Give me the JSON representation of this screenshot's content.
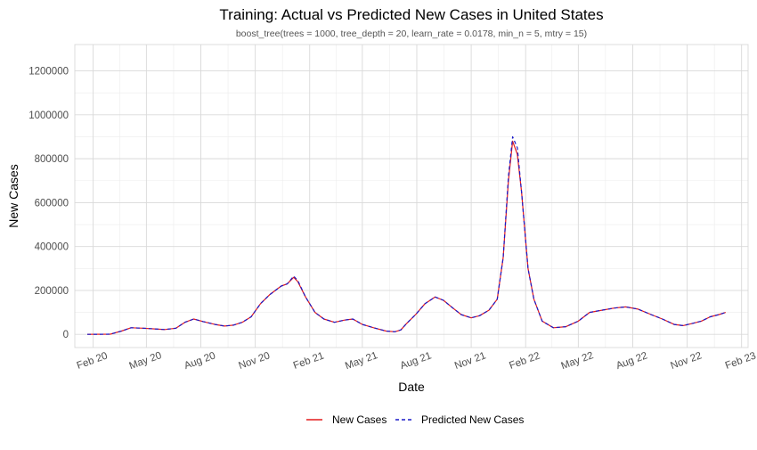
{
  "chart_data": {
    "type": "line",
    "title": "Training: Actual vs Predicted New Cases in United States",
    "subtitle": "boost_tree(trees = 1000, tree_depth = 20, learn_rate = 0.0178, min_n = 5, mtry = 15)",
    "xlabel": "Date",
    "ylabel": "New Cases",
    "x_range": [
      "2020-01-01",
      "2023-02-12"
    ],
    "ylim": [
      -60000,
      1320000
    ],
    "x_ticks": [
      {
        "label": "Feb 20",
        "date": "2020-02-01"
      },
      {
        "label": "May 20",
        "date": "2020-05-01"
      },
      {
        "label": "Aug 20",
        "date": "2020-08-01"
      },
      {
        "label": "Nov 20",
        "date": "2020-11-01"
      },
      {
        "label": "Feb 21",
        "date": "2021-02-01"
      },
      {
        "label": "May 21",
        "date": "2021-05-01"
      },
      {
        "label": "Aug 21",
        "date": "2021-08-01"
      },
      {
        "label": "Nov 21",
        "date": "2021-11-01"
      },
      {
        "label": "Feb 22",
        "date": "2022-02-01"
      },
      {
        "label": "May 22",
        "date": "2022-05-01"
      },
      {
        "label": "Aug 22",
        "date": "2022-08-01"
      },
      {
        "label": "Nov 22",
        "date": "2022-11-01"
      },
      {
        "label": "Feb 23",
        "date": "2023-02-01"
      }
    ],
    "y_ticks": [
      {
        "label": "0",
        "value": 0
      },
      {
        "label": "200000",
        "value": 200000
      },
      {
        "label": "400000",
        "value": 400000
      },
      {
        "label": "600000",
        "value": 600000
      },
      {
        "label": "800000",
        "value": 800000
      },
      {
        "label": "1000000",
        "value": 1000000
      },
      {
        "label": "1200000",
        "value": 1200000
      }
    ],
    "grid": true,
    "legend_position": "bottom",
    "series": [
      {
        "name": "New Cases",
        "color": "#e41a1c",
        "dash": "solid",
        "x": [
          "2020-01-22",
          "2020-03-01",
          "2020-03-20",
          "2020-04-05",
          "2020-04-25",
          "2020-05-15",
          "2020-06-01",
          "2020-06-20",
          "2020-07-05",
          "2020-07-20",
          "2020-08-05",
          "2020-08-25",
          "2020-09-10",
          "2020-09-25",
          "2020-10-10",
          "2020-10-25",
          "2020-11-10",
          "2020-11-25",
          "2020-12-05",
          "2020-12-15",
          "2020-12-25",
          "2021-01-05",
          "2021-01-12",
          "2021-01-25",
          "2021-02-10",
          "2021-02-25",
          "2021-03-15",
          "2021-04-01",
          "2021-04-15",
          "2021-05-01",
          "2021-05-20",
          "2021-06-10",
          "2021-06-25",
          "2021-07-05",
          "2021-07-15",
          "2021-07-30",
          "2021-08-15",
          "2021-09-01",
          "2021-09-15",
          "2021-10-01",
          "2021-10-15",
          "2021-11-01",
          "2021-11-15",
          "2021-12-01",
          "2021-12-15",
          "2021-12-25",
          "2022-01-03",
          "2022-01-10",
          "2022-01-18",
          "2022-01-25",
          "2022-02-05",
          "2022-02-15",
          "2022-03-01",
          "2022-03-20",
          "2022-04-10",
          "2022-05-01",
          "2022-05-20",
          "2022-06-10",
          "2022-07-01",
          "2022-07-20",
          "2022-08-10",
          "2022-09-01",
          "2022-09-20",
          "2022-10-10",
          "2022-10-25",
          "2022-11-10",
          "2022-11-25",
          "2022-12-10",
          "2022-12-25",
          "2023-01-05"
        ],
        "values": [
          0,
          1000,
          15000,
          30000,
          28000,
          25000,
          22000,
          28000,
          55000,
          70000,
          58000,
          45000,
          38000,
          42000,
          55000,
          80000,
          140000,
          180000,
          200000,
          220000,
          230000,
          260000,
          240000,
          170000,
          100000,
          70000,
          55000,
          65000,
          70000,
          45000,
          30000,
          15000,
          12000,
          20000,
          50000,
          90000,
          140000,
          170000,
          155000,
          120000,
          90000,
          75000,
          85000,
          110000,
          160000,
          350000,
          700000,
          880000,
          820000,
          650000,
          300000,
          160000,
          60000,
          30000,
          35000,
          60000,
          100000,
          110000,
          120000,
          125000,
          115000,
          90000,
          70000,
          45000,
          40000,
          50000,
          60000,
          80000,
          90000,
          100000
        ]
      },
      {
        "name": "Predicted New Cases",
        "color": "#1a1ac8",
        "dash": "dashed",
        "x": [
          "2020-01-22",
          "2020-03-01",
          "2020-03-20",
          "2020-04-05",
          "2020-04-25",
          "2020-05-15",
          "2020-06-01",
          "2020-06-20",
          "2020-07-05",
          "2020-07-20",
          "2020-08-05",
          "2020-08-25",
          "2020-09-10",
          "2020-09-25",
          "2020-10-10",
          "2020-10-25",
          "2020-11-10",
          "2020-11-25",
          "2020-12-05",
          "2020-12-15",
          "2020-12-25",
          "2021-01-05",
          "2021-01-12",
          "2021-01-25",
          "2021-02-10",
          "2021-02-25",
          "2021-03-15",
          "2021-04-01",
          "2021-04-15",
          "2021-05-01",
          "2021-05-20",
          "2021-06-10",
          "2021-06-25",
          "2021-07-05",
          "2021-07-15",
          "2021-07-30",
          "2021-08-15",
          "2021-09-01",
          "2021-09-15",
          "2021-10-01",
          "2021-10-15",
          "2021-11-01",
          "2021-11-15",
          "2021-12-01",
          "2021-12-15",
          "2021-12-25",
          "2022-01-03",
          "2022-01-10",
          "2022-01-18",
          "2022-01-25",
          "2022-02-05",
          "2022-02-15",
          "2022-03-01",
          "2022-03-20",
          "2022-04-10",
          "2022-05-01",
          "2022-05-20",
          "2022-06-10",
          "2022-07-01",
          "2022-07-20",
          "2022-08-10",
          "2022-09-01",
          "2022-09-20",
          "2022-10-10",
          "2022-10-25",
          "2022-11-10",
          "2022-11-25",
          "2022-12-10",
          "2022-12-25",
          "2023-01-05"
        ],
        "values": [
          0,
          1000,
          15000,
          30000,
          28000,
          25000,
          22000,
          28000,
          55000,
          70000,
          58000,
          45000,
          38000,
          42000,
          55000,
          80000,
          140000,
          180000,
          200000,
          220000,
          230000,
          265000,
          245000,
          170000,
          100000,
          70000,
          55000,
          65000,
          70000,
          45000,
          30000,
          15000,
          12000,
          20000,
          50000,
          90000,
          140000,
          170000,
          155000,
          120000,
          90000,
          75000,
          85000,
          110000,
          160000,
          350000,
          720000,
          900000,
          850000,
          650000,
          300000,
          160000,
          60000,
          30000,
          35000,
          60000,
          100000,
          110000,
          120000,
          125000,
          115000,
          90000,
          70000,
          45000,
          40000,
          50000,
          60000,
          80000,
          90000,
          100000
        ]
      }
    ]
  }
}
